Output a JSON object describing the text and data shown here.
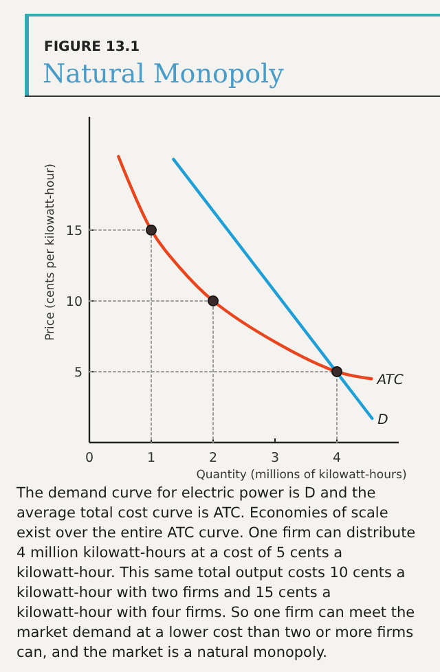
{
  "chart_data": {
    "type": "line",
    "subtitle": "FIGURE 13.1",
    "title": "Natural Monopoly",
    "xlabel": "Quantity (millions of kilowatt-hours)",
    "ylabel": "Price (cents per kilowatt-hour)",
    "xlim": [
      0,
      5
    ],
    "ylim": [
      0,
      23
    ],
    "xticks": [
      0,
      1,
      2,
      3,
      4
    ],
    "yticks": [
      5,
      10,
      15
    ],
    "grid": false,
    "legend": false,
    "series": [
      {
        "x": [
          0,
          1,
          1
        ],
        "values": [
          15,
          15,
          0
        ],
        "color": "#9a9a9a",
        "line_style": "dotted"
      },
      {
        "x": [
          0,
          2,
          2
        ],
        "values": [
          10,
          10,
          0
        ],
        "color": "#9a9a9a",
        "line_style": "dotted"
      },
      {
        "x": [
          0,
          4,
          4
        ],
        "values": [
          5,
          5,
          0
        ],
        "color": "#9a9a9a",
        "line_style": "dotted"
      },
      {
        "name": "ATC",
        "x": [
          0.47,
          1,
          1.45,
          2,
          3,
          4,
          4.56
        ],
        "values": [
          20.2,
          15,
          12.4,
          10,
          7.1,
          5,
          4.5
        ],
        "color": "#e8461e",
        "line_style": "solid"
      },
      {
        "name": "D",
        "x": [
          1.36,
          4.57
        ],
        "values": [
          20,
          1.7
        ],
        "color": "#1f9fd6",
        "line_style": "solid"
      },
      {
        "type": "scatter",
        "x": [
          1,
          2,
          4
        ],
        "values": [
          15,
          10,
          5
        ],
        "color": "#3a2a2a",
        "marker": "circle"
      }
    ],
    "annotations": [
      "The demand curve for electric power is D and the average total cost curve is ATC. Economies of scale exist over the entire ATC curve. One firm can distribute 4 million kilowatt-hours at a cost of 5 cents a kilowatt-hour. This same total output costs 10 cents a kilowatt-hour with two firms and 15 cents a kilowatt-hour with four firms. So one firm can meet the market demand at a lower cost than two or more firms can, and the market is a natural monopoly."
    ]
  }
}
